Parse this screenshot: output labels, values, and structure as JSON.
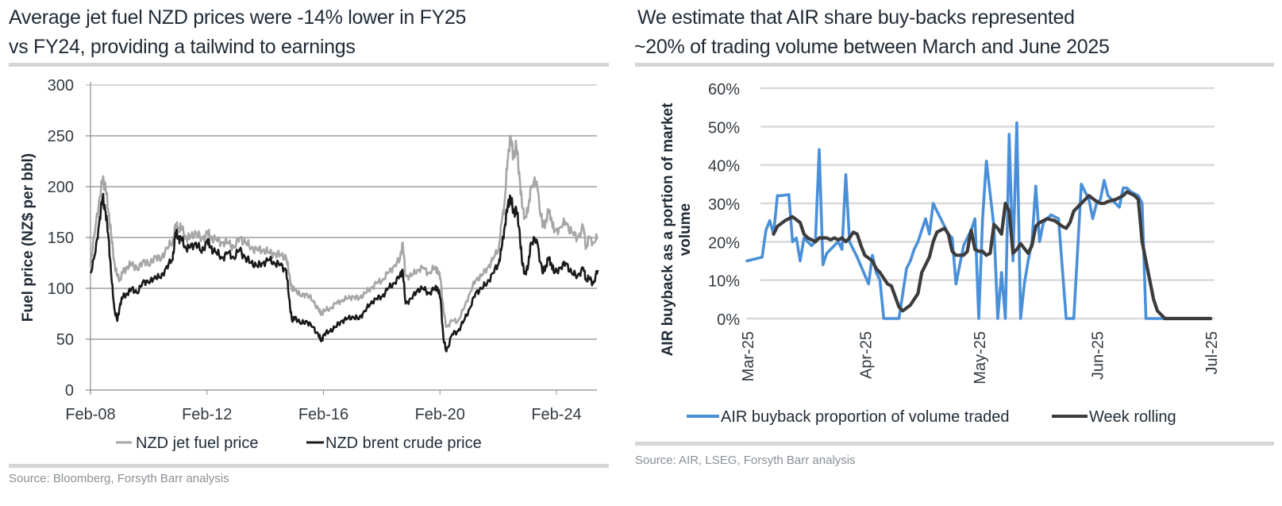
{
  "left": {
    "title_line1": "Average jet fuel NZD prices were -14% lower in FY25",
    "title_line2": "vs FY24, providing a tailwind to earnings",
    "source": "Source: Bloomberg, Forsyth Barr analysis"
  },
  "right": {
    "title_line1": "We estimate that AIR share buy-backs represented",
    "title_line2": "~20% of trading volume between March and June 2025",
    "source": "Source: AIR, LSEG, Forsyth Barr analysis"
  },
  "chart_data": [
    {
      "type": "line",
      "title": "Average jet fuel NZD prices were -14% lower in FY25 vs FY24, providing a tailwind to earnings",
      "xlabel": "",
      "ylabel": "Fuel price (NZ$ per bbl)",
      "ylim": [
        0,
        300
      ],
      "yticks": [
        "0",
        "50",
        "100",
        "150",
        "200",
        "250",
        "300"
      ],
      "xticks": [
        "Feb-08",
        "Feb-12",
        "Feb-16",
        "Feb-20",
        "Feb-24"
      ],
      "x_start_year": 2008.08,
      "x_end_year": 2025.5,
      "grid": "horizontal",
      "legend_position": "bottom",
      "series": [
        {
          "name": "NZD jet fuel price",
          "color": "#a6a6a6",
          "x_years": [
            2008.08,
            2008.25,
            2008.4,
            2008.5,
            2008.6,
            2008.7,
            2008.8,
            2008.9,
            2009.0,
            2009.1,
            2009.2,
            2009.35,
            2009.5,
            2009.7,
            2009.9,
            2010.1,
            2010.3,
            2010.5,
            2010.7,
            2010.9,
            2011.0,
            2011.1,
            2011.2,
            2011.35,
            2011.5,
            2011.7,
            2011.9,
            2012.1,
            2012.2,
            2012.4,
            2012.6,
            2012.8,
            2013.0,
            2013.2,
            2013.4,
            2013.6,
            2013.8,
            2014.0,
            2014.2,
            2014.4,
            2014.6,
            2014.8,
            2014.9,
            2015.0,
            2015.1,
            2015.3,
            2015.5,
            2015.7,
            2015.9,
            2016.0,
            2016.1,
            2016.3,
            2016.5,
            2016.7,
            2016.9,
            2017.1,
            2017.3,
            2017.5,
            2017.7,
            2017.9,
            2018.1,
            2018.3,
            2018.5,
            2018.7,
            2018.8,
            2018.9,
            2019.1,
            2019.3,
            2019.5,
            2019.7,
            2019.9,
            2020.0,
            2020.1,
            2020.2,
            2020.3,
            2020.5,
            2020.7,
            2020.9,
            2021.1,
            2021.3,
            2021.5,
            2021.7,
            2021.9,
            2022.1,
            2022.2,
            2022.3,
            2022.4,
            2022.5,
            2022.6,
            2022.7,
            2022.8,
            2022.9,
            2023.0,
            2023.1,
            2023.2,
            2023.4,
            2023.6,
            2023.7,
            2023.8,
            2023.9,
            2024.0,
            2024.2,
            2024.4,
            2024.6,
            2024.8,
            2025.0,
            2025.1,
            2025.2,
            2025.35,
            2025.5
          ],
          "values": [
            125,
            160,
            190,
            208,
            200,
            175,
            150,
            125,
            112,
            108,
            118,
            120,
            125,
            118,
            128,
            122,
            132,
            128,
            140,
            145,
            163,
            158,
            160,
            150,
            150,
            155,
            148,
            155,
            150,
            148,
            145,
            145,
            140,
            150,
            145,
            140,
            138,
            138,
            135,
            134,
            133,
            130,
            115,
            98,
            100,
            92,
            95,
            88,
            80,
            75,
            78,
            80,
            85,
            88,
            90,
            92,
            90,
            95,
            100,
            105,
            108,
            115,
            122,
            128,
            145,
            112,
            112,
            118,
            120,
            115,
            120,
            118,
            110,
            78,
            62,
            68,
            68,
            80,
            95,
            108,
            112,
            120,
            128,
            140,
            165,
            185,
            225,
            250,
            230,
            240,
            215,
            180,
            170,
            175,
            200,
            205,
            160,
            165,
            175,
            170,
            155,
            160,
            165,
            155,
            150,
            160,
            140,
            150,
            145,
            150
          ]
        },
        {
          "name": "NZD brent crude price",
          "color": "#1a1a1a",
          "x_years": [
            2008.08,
            2008.25,
            2008.4,
            2008.5,
            2008.6,
            2008.7,
            2008.8,
            2008.9,
            2009.0,
            2009.1,
            2009.2,
            2009.35,
            2009.5,
            2009.7,
            2009.9,
            2010.1,
            2010.3,
            2010.5,
            2010.7,
            2010.9,
            2011.0,
            2011.1,
            2011.2,
            2011.35,
            2011.5,
            2011.7,
            2011.9,
            2012.1,
            2012.2,
            2012.4,
            2012.6,
            2012.8,
            2013.0,
            2013.2,
            2013.4,
            2013.6,
            2013.8,
            2014.0,
            2014.2,
            2014.4,
            2014.6,
            2014.8,
            2014.9,
            2015.0,
            2015.1,
            2015.3,
            2015.5,
            2015.7,
            2015.9,
            2016.0,
            2016.1,
            2016.3,
            2016.5,
            2016.7,
            2016.9,
            2017.1,
            2017.3,
            2017.5,
            2017.7,
            2017.9,
            2018.1,
            2018.3,
            2018.5,
            2018.7,
            2018.8,
            2018.9,
            2019.1,
            2019.3,
            2019.5,
            2019.7,
            2019.9,
            2020.0,
            2020.1,
            2020.2,
            2020.3,
            2020.5,
            2020.7,
            2020.9,
            2021.1,
            2021.3,
            2021.5,
            2021.7,
            2021.9,
            2022.1,
            2022.2,
            2022.3,
            2022.4,
            2022.5,
            2022.6,
            2022.7,
            2022.8,
            2022.9,
            2023.0,
            2023.1,
            2023.2,
            2023.4,
            2023.6,
            2023.7,
            2023.8,
            2023.9,
            2024.0,
            2024.2,
            2024.4,
            2024.6,
            2024.8,
            2025.0,
            2025.1,
            2025.2,
            2025.35,
            2025.5
          ],
          "values": [
            115,
            135,
            170,
            190,
            175,
            150,
            110,
            80,
            68,
            85,
            92,
            95,
            100,
            95,
            108,
            105,
            112,
            110,
            122,
            128,
            155,
            150,
            148,
            140,
            140,
            145,
            135,
            148,
            140,
            135,
            130,
            135,
            130,
            138,
            130,
            125,
            122,
            125,
            128,
            125,
            123,
            118,
            90,
            68,
            72,
            65,
            68,
            62,
            55,
            48,
            55,
            58,
            62,
            68,
            70,
            72,
            70,
            78,
            85,
            90,
            92,
            100,
            105,
            112,
            118,
            85,
            90,
            98,
            100,
            95,
            100,
            100,
            90,
            50,
            38,
            55,
            58,
            68,
            80,
            95,
            100,
            105,
            115,
            125,
            140,
            160,
            180,
            190,
            175,
            178,
            160,
            125,
            115,
            120,
            145,
            148,
            115,
            120,
            130,
            125,
            115,
            120,
            125,
            115,
            112,
            120,
            108,
            110,
            105,
            118
          ]
        }
      ]
    },
    {
      "type": "line",
      "title": "We estimate that AIR share buy-backs represented ~20% of trading volume between March and June 2025",
      "xlabel": "",
      "ylabel": "AIR buyback as a portion of market volume",
      "ylim": [
        0,
        0.6
      ],
      "yticks": [
        "0%",
        "10%",
        "20%",
        "30%",
        "40%",
        "50%",
        "60%"
      ],
      "xticks": [
        "Mar-25",
        "Apr-25",
        "May-25",
        "Jun-25",
        "Jul-25"
      ],
      "x_tick_days": [
        0,
        31,
        61,
        92,
        122
      ],
      "grid": "horizontal",
      "legend_position": "bottom",
      "series": [
        {
          "name": "AIR buyback proportion of volume traded",
          "color": "#4a90d9",
          "x_days": [
            0,
            4,
            5,
            6,
            7,
            8,
            9,
            11,
            12,
            13,
            14,
            15,
            16,
            17,
            18,
            19,
            20,
            21,
            22,
            23,
            24,
            25,
            26,
            27,
            29,
            32,
            33,
            34,
            35,
            36,
            37,
            40,
            42,
            43,
            44,
            45,
            46,
            47,
            48,
            49,
            50,
            51,
            52,
            53,
            54,
            55,
            57,
            59,
            60,
            61,
            62,
            63,
            65,
            66,
            67,
            68,
            69,
            70,
            71,
            72,
            73,
            74,
            75,
            76,
            77,
            78,
            79,
            80,
            82,
            84,
            85,
            86,
            88,
            90,
            91,
            92,
            93,
            94,
            95,
            96,
            97,
            98,
            99,
            100,
            101,
            103,
            104,
            105,
            106,
            107,
            108,
            109,
            110,
            112,
            113,
            114,
            115,
            116,
            117,
            122
          ],
          "values": [
            0.15,
            0.16,
            0.23,
            0.255,
            0.22,
            0.32,
            0.32,
            0.323,
            0.2,
            0.21,
            0.15,
            0.21,
            0.2,
            0.19,
            0.2,
            0.44,
            0.14,
            0.17,
            0.18,
            0.19,
            0.2,
            0.18,
            0.375,
            0.2,
            0.16,
            0.09,
            0.165,
            0.12,
            0.1,
            0.0,
            0.0,
            0.0,
            0.13,
            0.15,
            0.18,
            0.2,
            0.23,
            0.26,
            0.22,
            0.3,
            0.28,
            0.26,
            0.24,
            0.22,
            0.21,
            0.09,
            0.19,
            0.23,
            0.26,
            0.0,
            0.26,
            0.41,
            0.24,
            0.0,
            0.12,
            0.0,
            0.48,
            0.15,
            0.51,
            0.0,
            0.09,
            0.15,
            0.2,
            0.345,
            0.2,
            0.25,
            0.26,
            0.27,
            0.26,
            0.0,
            0.0,
            0.0,
            0.35,
            0.31,
            0.26,
            0.3,
            0.31,
            0.36,
            0.32,
            0.31,
            0.3,
            0.29,
            0.34,
            0.34,
            0.33,
            0.32,
            0.3,
            0.0,
            0.0,
            0.0,
            0.0,
            0.0,
            0.0,
            0.0,
            0.0,
            0.0,
            0.0,
            0.0,
            0.0,
            0.0
          ]
        },
        {
          "name": "Week rolling",
          "color": "#3c3c3c",
          "x_days": [
            7,
            8,
            10,
            12,
            14,
            15,
            16,
            17,
            18,
            19,
            21,
            22,
            23,
            24,
            25,
            26,
            27,
            28,
            29,
            30,
            31,
            33,
            34,
            35,
            37,
            38,
            40,
            41,
            43,
            44,
            45,
            46,
            48,
            49,
            50,
            52,
            53,
            54,
            55,
            57,
            58,
            59,
            60,
            61,
            62,
            63,
            64,
            65,
            66,
            67,
            68,
            69,
            70,
            71,
            72,
            74,
            75,
            76,
            77,
            79,
            81,
            83,
            84,
            85,
            86,
            88,
            90,
            92,
            93,
            94,
            95,
            97,
            99,
            100,
            101,
            102,
            103,
            104,
            105,
            106,
            107,
            108,
            110,
            112,
            114,
            116,
            117,
            118,
            120,
            122
          ],
          "values": [
            0.22,
            0.24,
            0.255,
            0.265,
            0.25,
            0.22,
            0.21,
            0.205,
            0.2,
            0.21,
            0.21,
            0.205,
            0.21,
            0.205,
            0.21,
            0.2,
            0.21,
            0.225,
            0.22,
            0.19,
            0.165,
            0.15,
            0.13,
            0.12,
            0.09,
            0.085,
            0.03,
            0.02,
            0.035,
            0.05,
            0.065,
            0.12,
            0.16,
            0.2,
            0.225,
            0.235,
            0.22,
            0.175,
            0.165,
            0.165,
            0.175,
            0.23,
            0.18,
            0.175,
            0.175,
            0.165,
            0.17,
            0.245,
            0.235,
            0.22,
            0.3,
            0.28,
            0.17,
            0.18,
            0.195,
            0.17,
            0.19,
            0.24,
            0.25,
            0.26,
            0.255,
            0.24,
            0.235,
            0.25,
            0.28,
            0.3,
            0.32,
            0.305,
            0.3,
            0.3,
            0.305,
            0.31,
            0.32,
            0.33,
            0.325,
            0.32,
            0.31,
            0.2,
            0.15,
            0.1,
            0.05,
            0.02,
            0.0,
            0.0,
            0.0,
            0.0,
            0.0,
            0.0,
            0.0,
            0.0
          ]
        }
      ]
    }
  ]
}
